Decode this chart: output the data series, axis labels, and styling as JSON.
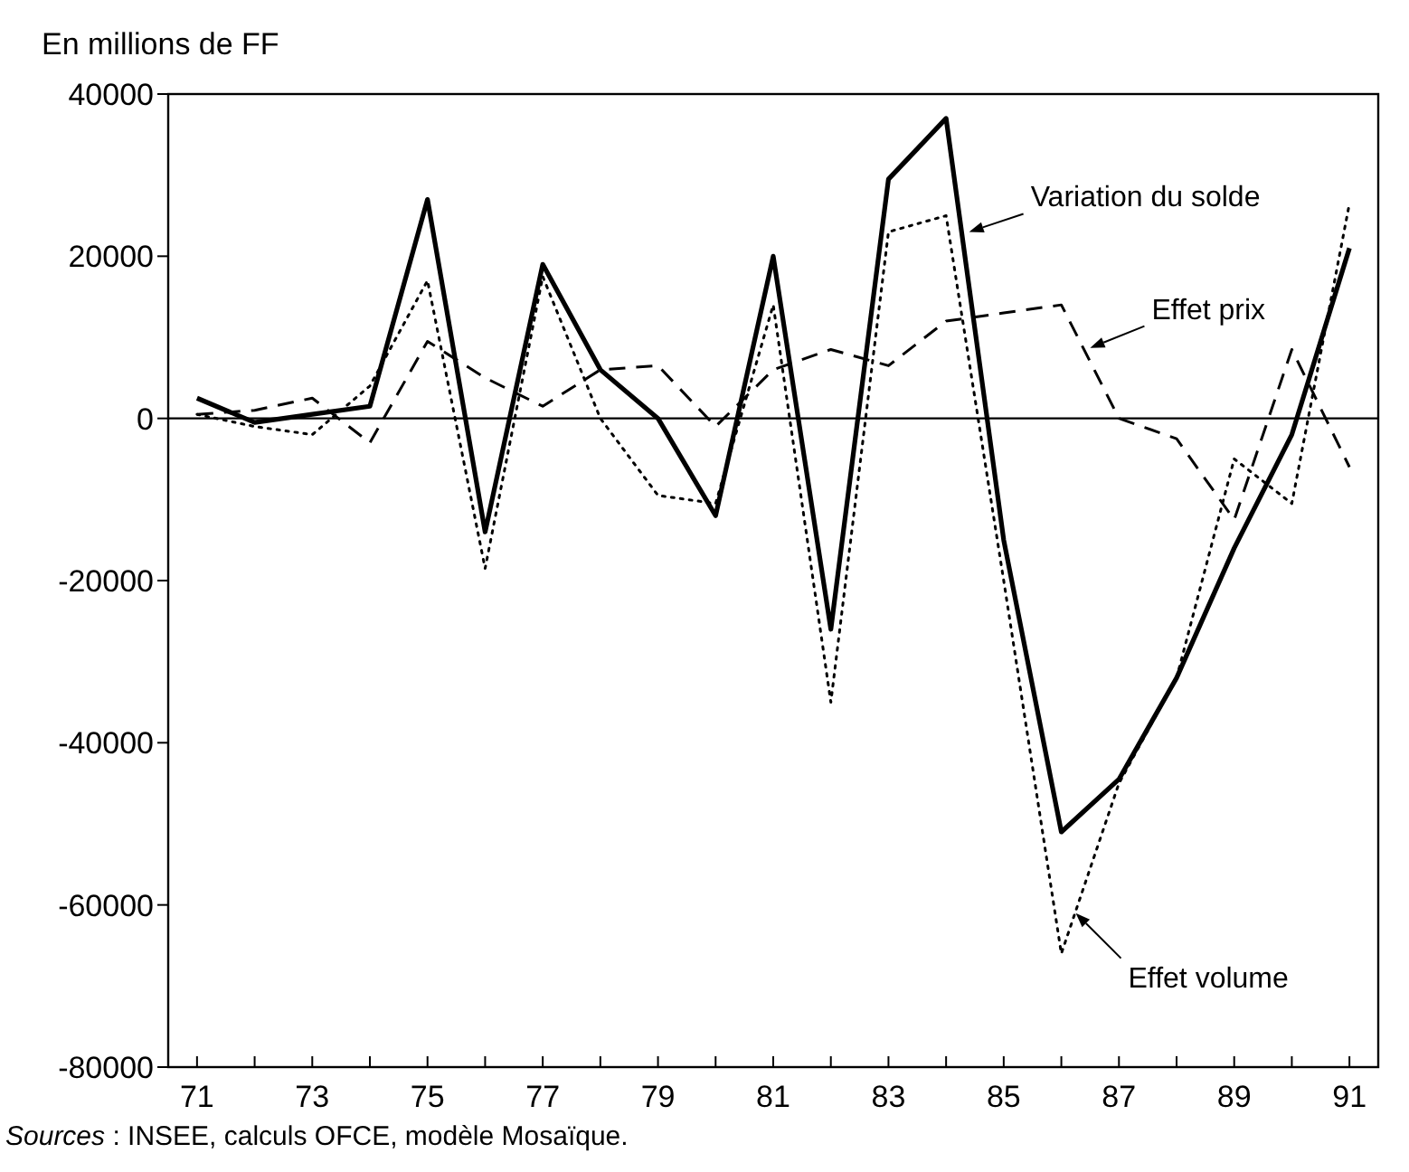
{
  "chart_data": {
    "type": "line",
    "ylabel": "En millions de FF",
    "x": [
      71,
      72,
      73,
      74,
      75,
      76,
      77,
      78,
      79,
      80,
      81,
      82,
      83,
      84,
      85,
      86,
      87,
      88,
      89,
      90,
      91
    ],
    "xlim": [
      70.5,
      91.5
    ],
    "xticks": [
      71,
      {
        "value": 72,
        "label": null
      },
      73,
      {
        "value": 74,
        "label": null
      },
      75,
      {
        "value": 76,
        "label": null
      },
      77,
      {
        "value": 78,
        "label": null
      },
      79,
      {
        "value": 80,
        "label": null
      },
      81,
      {
        "value": 82,
        "label": null
      },
      83,
      {
        "value": 84,
        "label": null
      },
      85,
      {
        "value": 86,
        "label": null
      },
      87,
      {
        "value": 88,
        "label": null
      },
      89,
      {
        "value": 90,
        "label": null
      },
      91
    ],
    "ylim": [
      -80000,
      40000
    ],
    "yticks": [
      -80000,
      -60000,
      -40000,
      -20000,
      0,
      20000,
      40000
    ],
    "grid": false,
    "marker": "none",
    "series": [
      {
        "color": "#000000",
        "line_style": "solid",
        "values": [
          2500,
          -500,
          500,
          1500,
          27000,
          -14000,
          19000,
          6000,
          0,
          -12000,
          20000,
          -26000,
          29500,
          37000,
          -15000,
          -51000,
          -44500,
          -32000,
          -16000,
          -2000,
          21000
        ]
      },
      {
        "color": "#000000",
        "line_style": "dashed",
        "values": [
          500,
          1000,
          2500,
          -3000,
          9500,
          5000,
          1500,
          6000,
          6500,
          -1000,
          6000,
          8500,
          6500,
          12000,
          13000,
          14000,
          0,
          -2500,
          -12500,
          8500,
          -6000
        ]
      },
      {
        "color": "#000000",
        "line_style": "dotted",
        "values": [
          500,
          -1000,
          -2000,
          4000,
          17000,
          -18500,
          17500,
          0,
          -9500,
          -10500,
          14000,
          -35000,
          23000,
          25000,
          -20000,
          -66000,
          -45000,
          -32000,
          -5000,
          -10500,
          26500
        ]
      }
    ],
    "ref_lines": [
      {
        "axis": "y",
        "value": 0,
        "color": "#000000"
      }
    ],
    "annotations": [
      {
        "text": "Variation du solde",
        "x": 84.4,
        "y": 23000
      },
      {
        "text": "Effet prix",
        "x": 86.5,
        "y": 8700
      },
      {
        "text": "Effet volume",
        "x": 86.25,
        "y": -61000
      },
      "Sources : INSEE, calculs OFCE, modèle Mosaïque."
    ]
  }
}
